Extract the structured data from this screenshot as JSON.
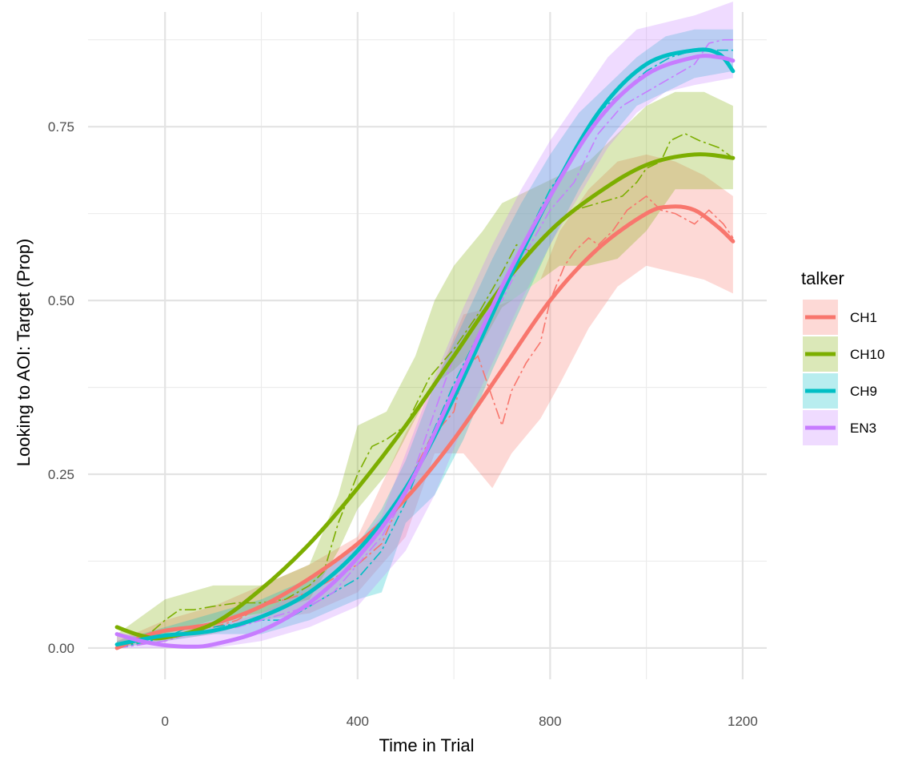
{
  "chart_data": {
    "type": "line",
    "title": "",
    "xlabel": "Time in Trial",
    "ylabel": "Looking to AOI:  Target (Prop)",
    "xlim": [
      -160,
      1250
    ],
    "ylim": [
      -0.045,
      0.915
    ],
    "x_ticks": [
      0,
      400,
      800,
      1200
    ],
    "x_tick_labels": [
      "0",
      "400",
      "800",
      "1200"
    ],
    "x_minor_ticks": [
      200,
      600,
      1000
    ],
    "y_ticks": [
      0,
      0.25,
      0.5,
      0.75
    ],
    "y_tick_labels": [
      "0.00",
      "0.25",
      "0.50",
      "0.75"
    ],
    "y_minor_ticks": [
      0.125,
      0.375,
      0.625,
      0.875
    ],
    "grid": true,
    "legend": {
      "title": "talker",
      "position": "right"
    },
    "series": [
      {
        "name": "CH1",
        "color": "#F8766D",
        "smooth": [
          [
            -100,
            0.0
          ],
          [
            -50,
            0.015
          ],
          [
            0,
            0.025
          ],
          [
            100,
            0.035
          ],
          [
            200,
            0.06
          ],
          [
            300,
            0.1
          ],
          [
            400,
            0.15
          ],
          [
            500,
            0.215
          ],
          [
            600,
            0.3
          ],
          [
            700,
            0.4
          ],
          [
            800,
            0.5
          ],
          [
            900,
            0.575
          ],
          [
            1000,
            0.625
          ],
          [
            1050,
            0.635
          ],
          [
            1100,
            0.63
          ],
          [
            1150,
            0.605
          ],
          [
            1180,
            0.585
          ]
        ],
        "raw": [
          [
            -100,
            0.0
          ],
          [
            -50,
            0.005
          ],
          [
            0,
            0.025
          ],
          [
            50,
            0.03
          ],
          [
            100,
            0.03
          ],
          [
            150,
            0.04
          ],
          [
            200,
            0.06
          ],
          [
            250,
            0.07
          ],
          [
            300,
            0.08
          ],
          [
            350,
            0.1
          ],
          [
            400,
            0.12
          ],
          [
            450,
            0.15
          ],
          [
            500,
            0.23
          ],
          [
            550,
            0.3
          ],
          [
            600,
            0.34
          ],
          [
            620,
            0.4
          ],
          [
            650,
            0.42
          ],
          [
            680,
            0.36
          ],
          [
            700,
            0.32
          ],
          [
            720,
            0.37
          ],
          [
            750,
            0.41
          ],
          [
            780,
            0.44
          ],
          [
            800,
            0.5
          ],
          [
            830,
            0.55
          ],
          [
            850,
            0.57
          ],
          [
            880,
            0.59
          ],
          [
            900,
            0.58
          ],
          [
            930,
            0.6
          ],
          [
            960,
            0.63
          ],
          [
            1000,
            0.65
          ],
          [
            1030,
            0.63
          ],
          [
            1060,
            0.625
          ],
          [
            1100,
            0.61
          ],
          [
            1130,
            0.63
          ],
          [
            1160,
            0.61
          ],
          [
            1180,
            0.59
          ]
        ],
        "band": [
          [
            -100,
            0.0,
            0.01
          ],
          [
            0,
            0.01,
            0.04
          ],
          [
            100,
            0.02,
            0.06
          ],
          [
            200,
            0.04,
            0.09
          ],
          [
            300,
            0.05,
            0.12
          ],
          [
            400,
            0.08,
            0.16
          ],
          [
            500,
            0.16,
            0.31
          ],
          [
            560,
            0.28,
            0.38
          ],
          [
            620,
            0.28,
            0.48
          ],
          [
            680,
            0.23,
            0.49
          ],
          [
            720,
            0.28,
            0.5
          ],
          [
            780,
            0.33,
            0.53
          ],
          [
            820,
            0.38,
            0.6
          ],
          [
            880,
            0.46,
            0.66
          ],
          [
            940,
            0.52,
            0.7
          ],
          [
            1000,
            0.55,
            0.71
          ],
          [
            1060,
            0.54,
            0.7
          ],
          [
            1120,
            0.53,
            0.68
          ],
          [
            1180,
            0.51,
            0.65
          ]
        ]
      },
      {
        "name": "CH10",
        "color": "#7CAE00",
        "smooth": [
          [
            -100,
            0.03
          ],
          [
            -50,
            0.018
          ],
          [
            0,
            0.015
          ],
          [
            100,
            0.035
          ],
          [
            200,
            0.085
          ],
          [
            300,
            0.15
          ],
          [
            400,
            0.23
          ],
          [
            500,
            0.32
          ],
          [
            600,
            0.42
          ],
          [
            700,
            0.52
          ],
          [
            800,
            0.6
          ],
          [
            900,
            0.655
          ],
          [
            1000,
            0.695
          ],
          [
            1100,
            0.71
          ],
          [
            1180,
            0.705
          ]
        ],
        "raw": [
          [
            -100,
            0.0
          ],
          [
            -50,
            0.01
          ],
          [
            0,
            0.04
          ],
          [
            30,
            0.055
          ],
          [
            60,
            0.055
          ],
          [
            100,
            0.06
          ],
          [
            150,
            0.065
          ],
          [
            200,
            0.065
          ],
          [
            250,
            0.07
          ],
          [
            300,
            0.09
          ],
          [
            330,
            0.11
          ],
          [
            360,
            0.18
          ],
          [
            400,
            0.25
          ],
          [
            430,
            0.29
          ],
          [
            460,
            0.3
          ],
          [
            500,
            0.32
          ],
          [
            550,
            0.39
          ],
          [
            600,
            0.43
          ],
          [
            650,
            0.48
          ],
          [
            700,
            0.54
          ],
          [
            730,
            0.58
          ],
          [
            760,
            0.57
          ],
          [
            800,
            0.6
          ],
          [
            850,
            0.63
          ],
          [
            900,
            0.64
          ],
          [
            950,
            0.65
          ],
          [
            980,
            0.67
          ],
          [
            1000,
            0.69
          ],
          [
            1030,
            0.7
          ],
          [
            1050,
            0.73
          ],
          [
            1080,
            0.74
          ],
          [
            1110,
            0.73
          ],
          [
            1150,
            0.72
          ],
          [
            1180,
            0.705
          ]
        ],
        "band": [
          [
            -100,
            0.0,
            0.02
          ],
          [
            0,
            0.02,
            0.07
          ],
          [
            100,
            0.04,
            0.09
          ],
          [
            200,
            0.05,
            0.09
          ],
          [
            300,
            0.07,
            0.12
          ],
          [
            360,
            0.14,
            0.22
          ],
          [
            400,
            0.2,
            0.32
          ],
          [
            460,
            0.25,
            0.34
          ],
          [
            520,
            0.33,
            0.42
          ],
          [
            560,
            0.38,
            0.5
          ],
          [
            600,
            0.4,
            0.55
          ],
          [
            660,
            0.44,
            0.6
          ],
          [
            700,
            0.49,
            0.64
          ],
          [
            760,
            0.52,
            0.66
          ],
          [
            820,
            0.55,
            0.68
          ],
          [
            880,
            0.55,
            0.7
          ],
          [
            940,
            0.56,
            0.74
          ],
          [
            1000,
            0.6,
            0.78
          ],
          [
            1060,
            0.66,
            0.8
          ],
          [
            1120,
            0.66,
            0.8
          ],
          [
            1180,
            0.66,
            0.78
          ]
        ]
      },
      {
        "name": "CH9",
        "color": "#00BFC4",
        "smooth": [
          [
            -100,
            0.005
          ],
          [
            -50,
            0.012
          ],
          [
            0,
            0.018
          ],
          [
            100,
            0.025
          ],
          [
            200,
            0.045
          ],
          [
            300,
            0.08
          ],
          [
            400,
            0.14
          ],
          [
            500,
            0.23
          ],
          [
            600,
            0.36
          ],
          [
            700,
            0.51
          ],
          [
            800,
            0.65
          ],
          [
            900,
            0.77
          ],
          [
            1000,
            0.84
          ],
          [
            1100,
            0.86
          ],
          [
            1150,
            0.855
          ],
          [
            1180,
            0.83
          ]
        ],
        "raw": [
          [
            -100,
            0.0
          ],
          [
            0,
            0.015
          ],
          [
            50,
            0.03
          ],
          [
            100,
            0.03
          ],
          [
            150,
            0.035
          ],
          [
            200,
            0.04
          ],
          [
            250,
            0.04
          ],
          [
            300,
            0.06
          ],
          [
            350,
            0.08
          ],
          [
            400,
            0.1
          ],
          [
            450,
            0.14
          ],
          [
            500,
            0.21
          ],
          [
            550,
            0.3
          ],
          [
            600,
            0.38
          ],
          [
            650,
            0.45
          ],
          [
            700,
            0.52
          ],
          [
            750,
            0.59
          ],
          [
            800,
            0.66
          ],
          [
            850,
            0.71
          ],
          [
            900,
            0.77
          ],
          [
            950,
            0.8
          ],
          [
            1000,
            0.83
          ],
          [
            1050,
            0.85
          ],
          [
            1100,
            0.86
          ],
          [
            1150,
            0.86
          ],
          [
            1180,
            0.86
          ]
        ],
        "band": [
          [
            -100,
            0.0,
            0.01
          ],
          [
            0,
            0.01,
            0.03
          ],
          [
            100,
            0.02,
            0.05
          ],
          [
            200,
            0.02,
            0.07
          ],
          [
            300,
            0.04,
            0.1
          ],
          [
            400,
            0.07,
            0.15
          ],
          [
            450,
            0.08,
            0.2
          ],
          [
            500,
            0.18,
            0.27
          ],
          [
            560,
            0.22,
            0.38
          ],
          [
            620,
            0.3,
            0.47
          ],
          [
            680,
            0.4,
            0.56
          ],
          [
            740,
            0.49,
            0.64
          ],
          [
            800,
            0.58,
            0.71
          ],
          [
            860,
            0.66,
            0.77
          ],
          [
            920,
            0.73,
            0.81
          ],
          [
            980,
            0.78,
            0.85
          ],
          [
            1040,
            0.8,
            0.88
          ],
          [
            1100,
            0.82,
            0.89
          ],
          [
            1180,
            0.83,
            0.89
          ]
        ]
      },
      {
        "name": "EN3",
        "color": "#C77CFF",
        "smooth": [
          [
            -100,
            0.02
          ],
          [
            -50,
            0.01
          ],
          [
            0,
            0.004
          ],
          [
            50,
            0.002
          ],
          [
            100,
            0.005
          ],
          [
            200,
            0.025
          ],
          [
            300,
            0.065
          ],
          [
            400,
            0.13
          ],
          [
            500,
            0.225
          ],
          [
            600,
            0.37
          ],
          [
            700,
            0.52
          ],
          [
            800,
            0.65
          ],
          [
            900,
            0.76
          ],
          [
            1000,
            0.825
          ],
          [
            1100,
            0.85
          ],
          [
            1150,
            0.85
          ],
          [
            1180,
            0.845
          ]
        ],
        "raw": [
          [
            -100,
            0.0
          ],
          [
            0,
            0.01
          ],
          [
            50,
            0.02
          ],
          [
            100,
            0.025
          ],
          [
            150,
            0.03
          ],
          [
            200,
            0.04
          ],
          [
            250,
            0.05
          ],
          [
            300,
            0.06
          ],
          [
            350,
            0.08
          ],
          [
            400,
            0.12
          ],
          [
            450,
            0.16
          ],
          [
            500,
            0.22
          ],
          [
            550,
            0.32
          ],
          [
            600,
            0.42
          ],
          [
            650,
            0.47
          ],
          [
            700,
            0.5
          ],
          [
            750,
            0.57
          ],
          [
            800,
            0.63
          ],
          [
            850,
            0.67
          ],
          [
            900,
            0.74
          ],
          [
            950,
            0.78
          ],
          [
            1000,
            0.8
          ],
          [
            1050,
            0.82
          ],
          [
            1100,
            0.84
          ],
          [
            1130,
            0.87
          ],
          [
            1160,
            0.875
          ],
          [
            1180,
            0.875
          ]
        ],
        "band": [
          [
            -100,
            0.0,
            0.02
          ],
          [
            0,
            0.0,
            0.02
          ],
          [
            100,
            0.0,
            0.03
          ],
          [
            200,
            0.01,
            0.05
          ],
          [
            300,
            0.03,
            0.09
          ],
          [
            400,
            0.06,
            0.15
          ],
          [
            450,
            0.1,
            0.19
          ],
          [
            500,
            0.14,
            0.28
          ],
          [
            560,
            0.22,
            0.39
          ],
          [
            620,
            0.32,
            0.49
          ],
          [
            680,
            0.41,
            0.58
          ],
          [
            740,
            0.5,
            0.66
          ],
          [
            800,
            0.58,
            0.73
          ],
          [
            860,
            0.65,
            0.79
          ],
          [
            920,
            0.72,
            0.85
          ],
          [
            980,
            0.77,
            0.89
          ],
          [
            1040,
            0.8,
            0.9
          ],
          [
            1100,
            0.81,
            0.91
          ],
          [
            1180,
            0.82,
            0.93
          ]
        ]
      }
    ]
  }
}
